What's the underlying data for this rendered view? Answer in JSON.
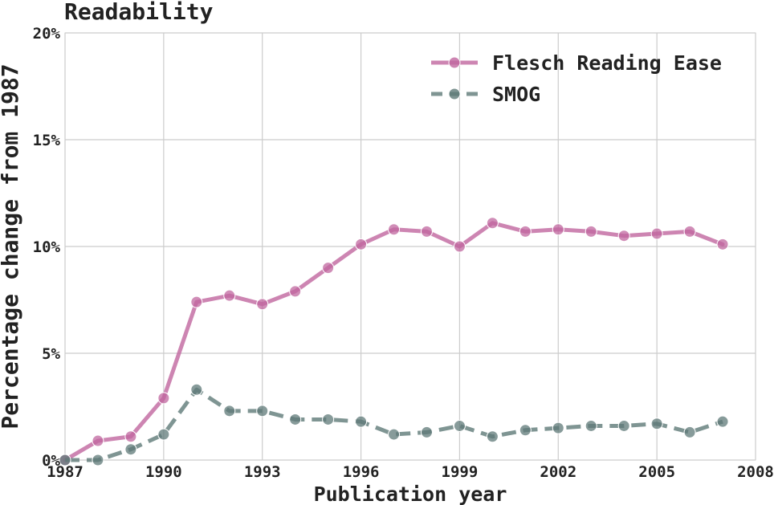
{
  "chart_data": {
    "type": "line",
    "title": "Readability",
    "xlabel": "Publication year",
    "ylabel": "Percentage change from 1987",
    "xlim": [
      1987,
      2008
    ],
    "ylim": [
      0,
      20
    ],
    "xticks": [
      "1987",
      "1990",
      "1993",
      "1996",
      "1999",
      "2002",
      "2005",
      "2008"
    ],
    "yticks": [
      "0%",
      "5%",
      "10%",
      "15%",
      "20%"
    ],
    "grid": true,
    "legend_position": "top-right",
    "x": [
      1987,
      1988,
      1989,
      1990,
      1991,
      1992,
      1993,
      1994,
      1995,
      1996,
      1997,
      1998,
      1999,
      2000,
      2001,
      2002,
      2003,
      2004,
      2005,
      2006,
      2007
    ],
    "series": [
      {
        "name": "Flesch Reading Ease",
        "color": "#c0679f",
        "style": "solid",
        "values": [
          0,
          0.9,
          1.1,
          2.9,
          7.4,
          7.7,
          7.3,
          7.9,
          9.0,
          10.1,
          10.8,
          10.7,
          10.0,
          11.1,
          10.7,
          10.8,
          10.7,
          10.5,
          10.6,
          10.7,
          10.1
        ]
      },
      {
        "name": "SMOG",
        "color": "#5f7a78",
        "style": "dashed",
        "values": [
          0,
          0.0,
          0.5,
          1.2,
          3.3,
          2.3,
          2.3,
          1.9,
          1.9,
          1.8,
          1.2,
          1.3,
          1.6,
          1.1,
          1.4,
          1.5,
          1.6,
          1.6,
          1.7,
          1.3,
          1.8
        ]
      }
    ]
  }
}
